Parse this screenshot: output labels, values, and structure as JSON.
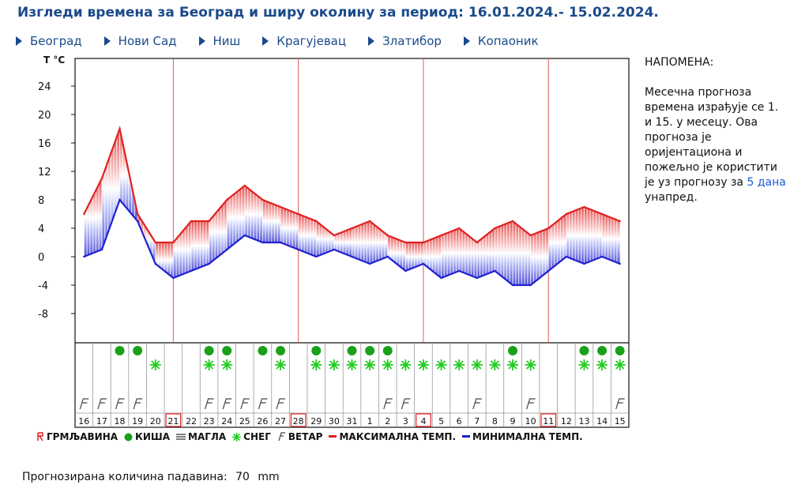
{
  "header": {
    "title": "Изгледи времена за Београд и ширу околину за период: 16.01.2024.- 15.02.2024."
  },
  "nav": [
    {
      "label": "Београд"
    },
    {
      "label": "Нови Сад"
    },
    {
      "label": "Ниш"
    },
    {
      "label": "Крагујевац"
    },
    {
      "label": "Златибор"
    },
    {
      "label": "Копаоник"
    }
  ],
  "note": {
    "heading": "НАПОМЕНА:",
    "text": "Месечна прогноза времена израђује се 1. и 15. у месецу. Ова прогноза је оријентациона и пожељно је користити је уз прогнозу за",
    "link": "5 дана",
    "tail": "унапред."
  },
  "legend": {
    "storm": "ГРМЉАВИНА",
    "rain": "КИША",
    "fog": "МАГЛА",
    "snow": "СНЕГ",
    "wind": "ВЕТАР",
    "max": "МАКСИМАЛНА ТЕМП.",
    "min": "МИНИМАЛНА ТЕМП."
  },
  "precip": {
    "label": "Прогнозирана количина падавина:",
    "value": "70",
    "unit": "mm"
  },
  "colors": {
    "max": "#e02020",
    "min": "#2020d0",
    "rain": "#1aa01a",
    "snow": "#22cc22",
    "accent": "#1a4a8a"
  },
  "chart_data": {
    "type": "line",
    "ylabel": "Т °C",
    "yticks": [
      24,
      20,
      16,
      12,
      8,
      4,
      0,
      -4,
      -8
    ],
    "ylim": [
      -12,
      28
    ],
    "categories": [
      "16",
      "17",
      "18",
      "19",
      "20",
      "21",
      "22",
      "23",
      "24",
      "25",
      "26",
      "27",
      "28",
      "29",
      "30",
      "31",
      "1",
      "2",
      "3",
      "4",
      "5",
      "6",
      "7",
      "8",
      "9",
      "10",
      "11",
      "12",
      "13",
      "14",
      "15"
    ],
    "highlighted": [
      "21",
      "28",
      "4",
      "11"
    ],
    "series": [
      {
        "name": "МАКСИМАЛНА ТЕМП.",
        "values": [
          6,
          11,
          18,
          6,
          2,
          2,
          5,
          5,
          8,
          10,
          8,
          7,
          6,
          5,
          3,
          4,
          5,
          3,
          2,
          2,
          3,
          4,
          2,
          4,
          5,
          3,
          4,
          6,
          7,
          6,
          5
        ]
      },
      {
        "name": "МИНИМАЛНА ТЕМП.",
        "values": [
          0,
          1,
          8,
          5,
          -1,
          -3,
          -2,
          -1,
          1,
          3,
          2,
          2,
          1,
          0,
          1,
          0,
          -1,
          0,
          -2,
          -1,
          -3,
          -2,
          -3,
          -2,
          -4,
          -4,
          -2,
          0,
          -1,
          0,
          -1
        ]
      }
    ],
    "rain": [
      "18",
      "19",
      "23",
      "24",
      "26",
      "27",
      "29",
      "31",
      "1",
      "2",
      "9",
      "13",
      "14",
      "15"
    ],
    "snow": [
      "20",
      "23",
      "24",
      "27",
      "29",
      "30",
      "31",
      "1",
      "2",
      "3",
      "4",
      "5",
      "6",
      "7",
      "8",
      "9",
      "10",
      "13",
      "14",
      "15"
    ],
    "wind": [
      "16",
      "17",
      "18",
      "19",
      "23",
      "24",
      "25",
      "26",
      "27",
      "2",
      "3",
      "7",
      "10",
      "15"
    ]
  }
}
